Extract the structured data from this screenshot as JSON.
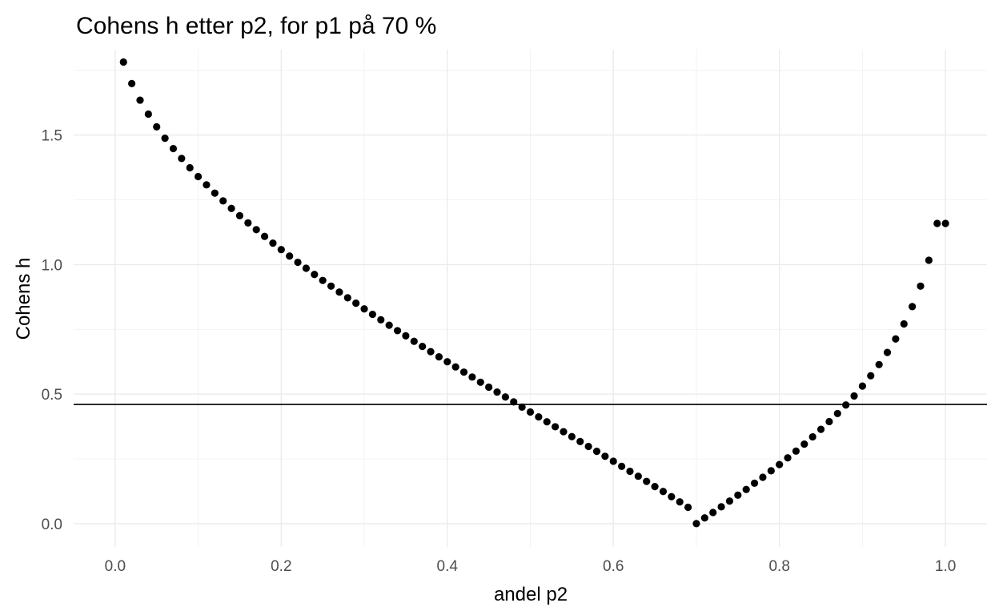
{
  "chart_data": {
    "type": "scatter",
    "title": "Cohens h etter p2, for p1 på 70 %",
    "xlabel": "andel p2",
    "ylabel": "Cohens h",
    "xlim": [
      -0.05,
      1.05
    ],
    "ylim": [
      -0.09,
      1.83
    ],
    "x_ticks": [
      0.0,
      0.2,
      0.4,
      0.6,
      0.8,
      1.0
    ],
    "x_tick_labels": [
      "0.0",
      "0.2",
      "0.4",
      "0.6",
      "0.8",
      "1.0"
    ],
    "y_ticks": [
      0.0,
      0.5,
      1.0,
      1.5
    ],
    "y_tick_labels": [
      "0.0",
      "0.5",
      "1.0",
      "1.5"
    ],
    "reference_line": {
      "orientation": "horizontal",
      "y": 0.46
    },
    "grid": true,
    "point_color": "#000000",
    "line_color": "#000000",
    "x": [
      0.01,
      0.02,
      0.03,
      0.04,
      0.05,
      0.06,
      0.07,
      0.08,
      0.09,
      0.1,
      0.11,
      0.12,
      0.13,
      0.14,
      0.15,
      0.16,
      0.17,
      0.18,
      0.19,
      0.2,
      0.21,
      0.22,
      0.23,
      0.24,
      0.25,
      0.26,
      0.27,
      0.28,
      0.29,
      0.3,
      0.31,
      0.32,
      0.33,
      0.34,
      0.35,
      0.36,
      0.37,
      0.38,
      0.39,
      0.4,
      0.41,
      0.42,
      0.43,
      0.44,
      0.45,
      0.46,
      0.47,
      0.48,
      0.49,
      0.5,
      0.51,
      0.52,
      0.53,
      0.54,
      0.55,
      0.56,
      0.57,
      0.58,
      0.59,
      0.6,
      0.61,
      0.62,
      0.63,
      0.64,
      0.65,
      0.66,
      0.67,
      0.68,
      0.69,
      0.7,
      0.71,
      0.72,
      0.73,
      0.74,
      0.75,
      0.76,
      0.77,
      0.78,
      0.79,
      0.8,
      0.81,
      0.82,
      0.83,
      0.84,
      0.85,
      0.86,
      0.87,
      0.88,
      0.89,
      0.9,
      0.91,
      0.92,
      0.93,
      0.94,
      0.95,
      0.96,
      0.97,
      0.98,
      0.99,
      1.0
    ],
    "y": [
      1.782,
      1.699,
      1.635,
      1.581,
      1.532,
      1.488,
      1.448,
      1.41,
      1.374,
      1.34,
      1.308,
      1.276,
      1.246,
      1.217,
      1.189,
      1.161,
      1.135,
      1.109,
      1.083,
      1.058,
      1.033,
      1.009,
      0.986,
      0.962,
      0.939,
      0.917,
      0.894,
      0.872,
      0.851,
      0.829,
      0.808,
      0.787,
      0.766,
      0.745,
      0.725,
      0.704,
      0.684,
      0.664,
      0.644,
      0.625,
      0.605,
      0.585,
      0.566,
      0.546,
      0.527,
      0.508,
      0.489,
      0.47,
      0.45,
      0.431,
      0.412,
      0.393,
      0.374,
      0.355,
      0.336,
      0.317,
      0.298,
      0.279,
      0.26,
      0.241,
      0.221,
      0.202,
      0.183,
      0.163,
      0.143,
      0.124,
      0.104,
      0.084,
      0.063,
      0.0,
      0.022,
      0.043,
      0.065,
      0.087,
      0.11,
      0.132,
      0.156,
      0.179,
      0.204,
      0.228,
      0.254,
      0.28,
      0.307,
      0.335,
      0.364,
      0.394,
      0.425,
      0.458,
      0.493,
      0.531,
      0.571,
      0.614,
      0.661,
      0.713,
      0.771,
      0.838,
      0.917,
      1.017,
      1.159,
      1.159
    ]
  }
}
